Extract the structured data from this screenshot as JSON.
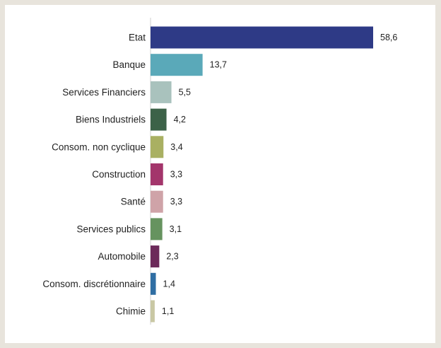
{
  "chart_data": {
    "type": "bar",
    "orientation": "horizontal",
    "title": "",
    "xlabel": "",
    "ylabel": "",
    "xlim": [
      0,
      58.6
    ],
    "grid": false,
    "legend": "none",
    "categories": [
      "Etat",
      "Banque",
      "Services Financiers",
      "Biens Industriels",
      "Consom. non cyclique",
      "Construction",
      "Santé",
      "Services publics",
      "Automobile",
      "Consom. discrétionnaire",
      "Chimie"
    ],
    "values": [
      58.6,
      13.7,
      5.5,
      4.2,
      3.4,
      3.3,
      3.3,
      3.1,
      2.3,
      1.4,
      1.1
    ],
    "value_labels": [
      "58,6",
      "13,7",
      "5,5",
      "4,2",
      "3,4",
      "3,3",
      "3,3",
      "3,1",
      "2,3",
      "1,4",
      "1,1"
    ],
    "colors": [
      "#2e3a86",
      "#5aa9b9",
      "#a9c2bd",
      "#3c6248",
      "#a9b062",
      "#a3356b",
      "#cfa3a8",
      "#66935f",
      "#6c2a5a",
      "#2f6ea3",
      "#c9c8a4"
    ]
  }
}
